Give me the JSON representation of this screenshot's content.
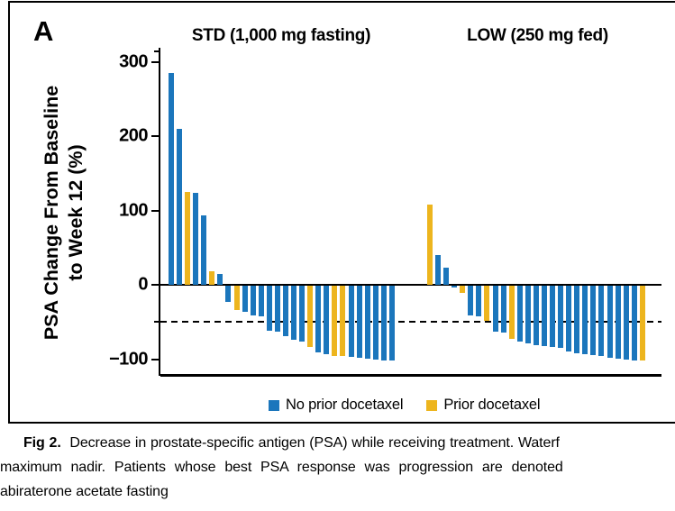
{
  "panel_label": "A",
  "colors": {
    "blue": "#1B76BC",
    "yellow": "#EDB51E",
    "axis": "#000000",
    "background": "#FFFFFF"
  },
  "legend": [
    {
      "label": "No prior docetaxel",
      "color_key": "blue"
    },
    {
      "label": "Prior docetaxel",
      "color_key": "yellow"
    }
  ],
  "chart_data": {
    "type": "bar",
    "variant": "waterfall",
    "ylabel_line1": "PSA Change From Baseline",
    "ylabel_line2": "to Week 12 (%)",
    "y_ticks": [
      300,
      200,
      100,
      0,
      -100
    ],
    "y_minor_ticks": [
      -50
    ],
    "reference_line": -50,
    "ylim": [
      -120,
      318
    ],
    "grid": false,
    "groups": [
      {
        "title": "STD (1,000 mg fasting)",
        "bars": [
          {
            "value": 285,
            "prior_docetaxel": false
          },
          {
            "value": 210,
            "prior_docetaxel": false
          },
          {
            "value": 125,
            "prior_docetaxel": true
          },
          {
            "value": 124,
            "prior_docetaxel": false
          },
          {
            "value": 93,
            "prior_docetaxel": false
          },
          {
            "value": 18,
            "prior_docetaxel": true
          },
          {
            "value": 14,
            "prior_docetaxel": false
          },
          {
            "value": -22,
            "prior_docetaxel": false
          },
          {
            "value": -33,
            "prior_docetaxel": true
          },
          {
            "value": -35,
            "prior_docetaxel": false
          },
          {
            "value": -40,
            "prior_docetaxel": false
          },
          {
            "value": -41,
            "prior_docetaxel": false
          },
          {
            "value": -60,
            "prior_docetaxel": false
          },
          {
            "value": -62,
            "prior_docetaxel": false
          },
          {
            "value": -68,
            "prior_docetaxel": false
          },
          {
            "value": -73,
            "prior_docetaxel": false
          },
          {
            "value": -75,
            "prior_docetaxel": false
          },
          {
            "value": -83,
            "prior_docetaxel": true
          },
          {
            "value": -90,
            "prior_docetaxel": false
          },
          {
            "value": -92,
            "prior_docetaxel": false
          },
          {
            "value": -94,
            "prior_docetaxel": true
          },
          {
            "value": -95,
            "prior_docetaxel": true
          },
          {
            "value": -96,
            "prior_docetaxel": false
          },
          {
            "value": -97,
            "prior_docetaxel": false
          },
          {
            "value": -98,
            "prior_docetaxel": false
          },
          {
            "value": -99,
            "prior_docetaxel": false
          },
          {
            "value": -100,
            "prior_docetaxel": false
          },
          {
            "value": -100,
            "prior_docetaxel": false
          }
        ]
      },
      {
        "title": "LOW (250 mg fed)",
        "bars": [
          {
            "value": 108,
            "prior_docetaxel": true
          },
          {
            "value": 40,
            "prior_docetaxel": false
          },
          {
            "value": 23,
            "prior_docetaxel": false
          },
          {
            "value": -2,
            "prior_docetaxel": false
          },
          {
            "value": -10,
            "prior_docetaxel": true
          },
          {
            "value": -40,
            "prior_docetaxel": false
          },
          {
            "value": -41,
            "prior_docetaxel": false
          },
          {
            "value": -47,
            "prior_docetaxel": true
          },
          {
            "value": -62,
            "prior_docetaxel": false
          },
          {
            "value": -63,
            "prior_docetaxel": false
          },
          {
            "value": -72,
            "prior_docetaxel": true
          },
          {
            "value": -75,
            "prior_docetaxel": false
          },
          {
            "value": -78,
            "prior_docetaxel": false
          },
          {
            "value": -80,
            "prior_docetaxel": false
          },
          {
            "value": -81,
            "prior_docetaxel": false
          },
          {
            "value": -83,
            "prior_docetaxel": false
          },
          {
            "value": -84,
            "prior_docetaxel": false
          },
          {
            "value": -89,
            "prior_docetaxel": false
          },
          {
            "value": -91,
            "prior_docetaxel": false
          },
          {
            "value": -92,
            "prior_docetaxel": false
          },
          {
            "value": -93,
            "prior_docetaxel": false
          },
          {
            "value": -94,
            "prior_docetaxel": false
          },
          {
            "value": -97,
            "prior_docetaxel": false
          },
          {
            "value": -98,
            "prior_docetaxel": false
          },
          {
            "value": -99,
            "prior_docetaxel": false
          },
          {
            "value": -100,
            "prior_docetaxel": false
          },
          {
            "value": -100,
            "prior_docetaxel": true
          }
        ]
      }
    ]
  },
  "caption": {
    "fig_label": "Fig 2.",
    "line1_rest": "Decrease in prostate-specific antigen (PSA) while receiving treatment. Waterf",
    "line2": "maximum nadir. Patients whose best PSA response was progression are denoted",
    "line3": "abiraterone acetate fasting"
  }
}
